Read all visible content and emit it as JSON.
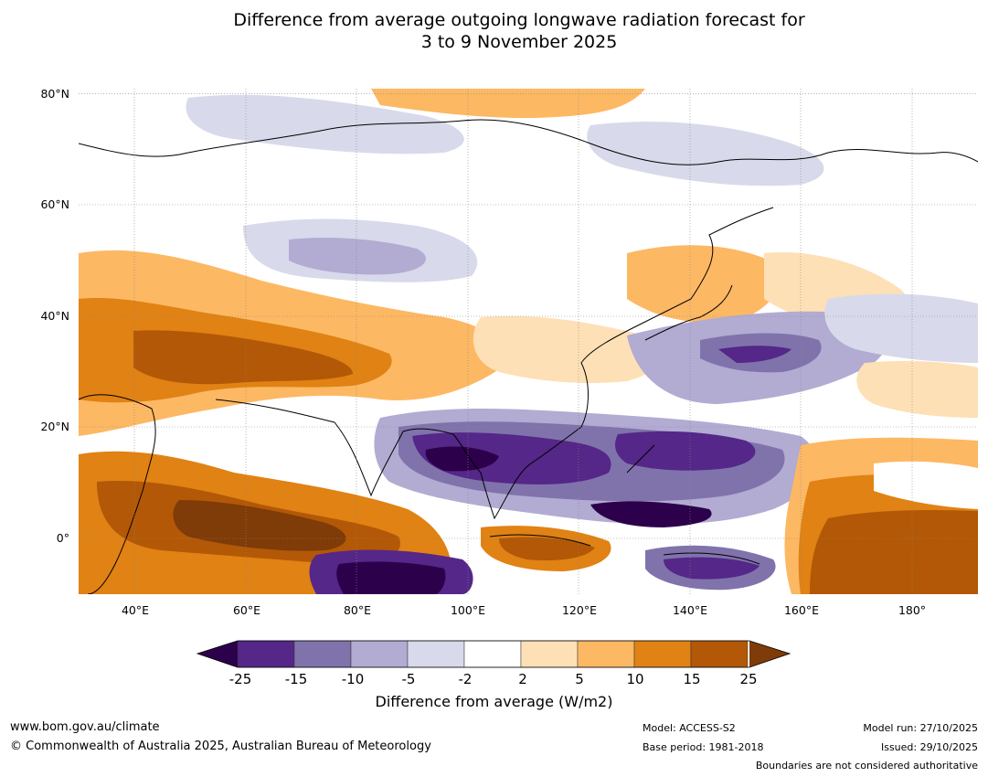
{
  "title": {
    "line1": "Difference from average outgoing longwave radiation forecast for",
    "line2": "3 to 9 November 2025"
  },
  "map": {
    "lat_range": [
      -10,
      80
    ],
    "lon_range": [
      30,
      191
    ],
    "lat_ticks": [
      {
        "lat": 80,
        "label": "80°N"
      },
      {
        "lat": 60,
        "label": "60°N"
      },
      {
        "lat": 40,
        "label": "40°N"
      },
      {
        "lat": 20,
        "label": "20°N"
      },
      {
        "lat": 0,
        "label": "0°"
      }
    ],
    "lon_ticks": [
      {
        "lon": 40,
        "label": "40°E"
      },
      {
        "lon": 60,
        "label": "60°E"
      },
      {
        "lon": 80,
        "label": "80°E"
      },
      {
        "lon": 100,
        "label": "100°E"
      },
      {
        "lon": 120,
        "label": "120°E"
      },
      {
        "lon": 140,
        "label": "140°E"
      },
      {
        "lon": 160,
        "label": "160°E"
      },
      {
        "lon": 180,
        "label": "180°"
      }
    ]
  },
  "colorbar": {
    "title": "Difference from average (W/m2)",
    "tick_labels": [
      "-25",
      "-15",
      "-10",
      "-5",
      "-2",
      "2",
      "5",
      "10",
      "15",
      "25"
    ],
    "colors": [
      "#2d004b",
      "#542788",
      "#8073ac",
      "#b2abd2",
      "#d8daeb",
      "#ffffff",
      "#fee0b6",
      "#fdb863",
      "#e08214",
      "#b35806",
      "#7f3b08"
    ]
  },
  "footer": {
    "website": "www.bom.gov.au/climate",
    "copyright": "© Commonwealth of Australia 2025, Australian Bureau of Meteorology",
    "model": "Model: ACCESS-S2",
    "base_period": "Base period: 1981-2018",
    "model_run": "Model run: 27/10/2025",
    "issued": "Issued: 29/10/2025",
    "boundaries": "Boundaries are not considered authoritative"
  }
}
